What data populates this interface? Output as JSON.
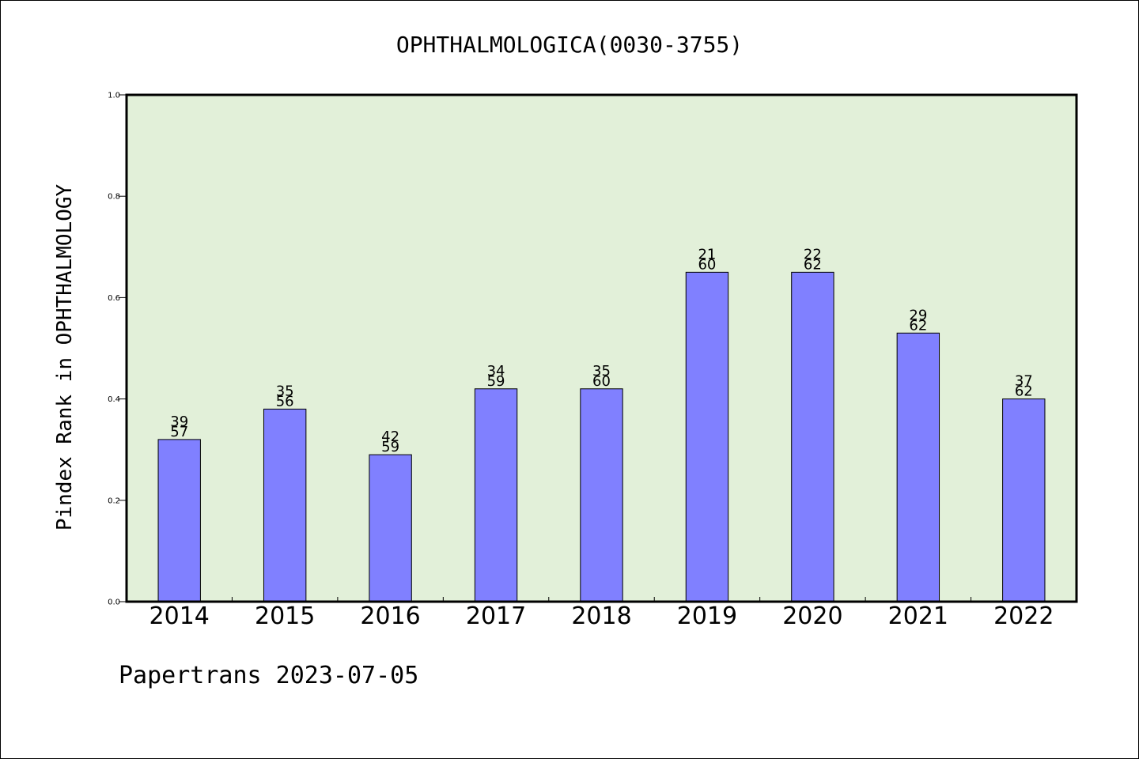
{
  "chart_data": {
    "type": "bar",
    "title": "OPHTHALMOLOGICA(0030-3755)",
    "ylabel": "Pindex Rank in OPHTHALMOLOGY",
    "xlabel": "",
    "categories": [
      "2014",
      "2015",
      "2016",
      "2017",
      "2018",
      "2019",
      "2020",
      "2021",
      "2022"
    ],
    "values": [
      0.32,
      0.38,
      0.29,
      0.42,
      0.42,
      0.65,
      0.65,
      0.53,
      0.4
    ],
    "rank": [
      39,
      35,
      42,
      34,
      35,
      21,
      22,
      29,
      37
    ],
    "total": [
      57,
      56,
      59,
      59,
      60,
      60,
      62,
      62,
      62
    ],
    "ylim": [
      0.0,
      1.0
    ],
    "yticks": [
      "0.0",
      "0.2",
      "0.4",
      "0.6",
      "0.8",
      "1.0"
    ],
    "grid": false,
    "colors": {
      "bar": "#8080ff",
      "plot_background": "#e2f0d9"
    }
  },
  "footer": {
    "text": "Papertrans 2023-07-05"
  }
}
